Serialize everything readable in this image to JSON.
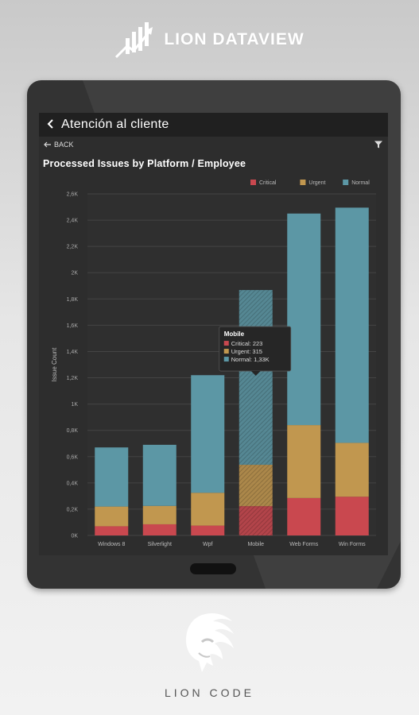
{
  "brand": {
    "top_name": "LION DATAVIEW",
    "bottom_name": "LION CODE"
  },
  "appbar": {
    "back_icon": "chevron-left-icon",
    "title": "Atención al cliente"
  },
  "subbar": {
    "back_label": "BACK",
    "filter_icon": "filter-icon"
  },
  "chart_data": {
    "type": "bar",
    "stacked": true,
    "title": "Processed Issues by Platform / Employee",
    "xlabel": "",
    "ylabel": "Issue Count",
    "categories": [
      "Windows 8",
      "Silverlight",
      "Wpf",
      "Mobile",
      "Web Forms",
      "Win Forms"
    ],
    "series": [
      {
        "name": "Critical",
        "color": "#c9484f",
        "values": [
          70,
          85,
          75,
          223,
          285,
          295
        ]
      },
      {
        "name": "Urgent",
        "color": "#c1974f",
        "values": [
          150,
          140,
          250,
          315,
          555,
          410
        ]
      },
      {
        "name": "Normal",
        "color": "#5c97a5",
        "values": [
          450,
          465,
          895,
          1330,
          1610,
          1790
        ]
      }
    ],
    "ylim": [
      0,
      2600
    ],
    "yticks": [
      "0K",
      "0,2K",
      "0,4K",
      "0,6K",
      "0,8K",
      "1K",
      "1,2K",
      "1,4K",
      "1,6K",
      "1,8K",
      "2K",
      "2,2K",
      "2,4K",
      "2,6K"
    ],
    "legend": "top-right",
    "grid": true,
    "tooltip": {
      "category": "Mobile",
      "title": "Mobile",
      "lines": [
        "Critical: 223",
        "Urgent: 315",
        "Normal: 1,33K"
      ]
    }
  }
}
